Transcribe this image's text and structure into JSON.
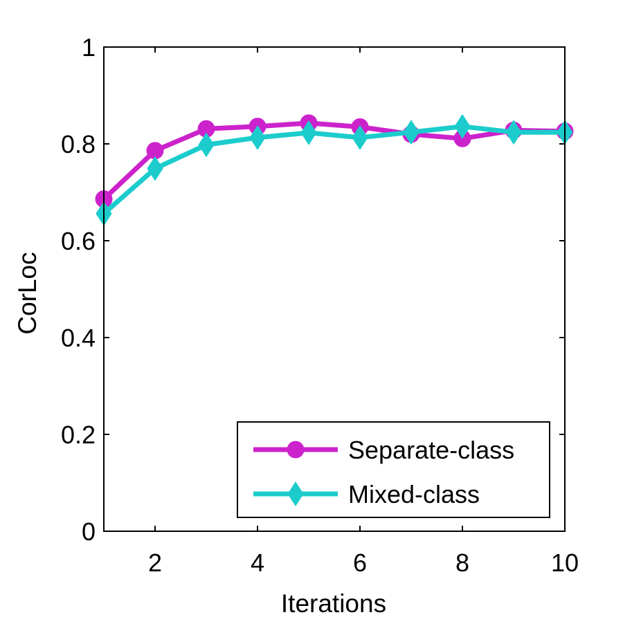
{
  "chart_data": {
    "type": "line",
    "xlabel": "Iterations",
    "ylabel": "CorLoc",
    "xlim": [
      1,
      10
    ],
    "ylim": [
      0,
      1
    ],
    "xticks": [
      2,
      4,
      6,
      8,
      10
    ],
    "yticks": [
      0,
      0.2,
      0.4,
      0.6,
      0.8,
      1
    ],
    "xtick_labels": [
      "2",
      "4",
      "6",
      "8",
      "10"
    ],
    "ytick_labels": [
      "0",
      "0.2",
      "0.4",
      "0.6",
      "0.8",
      "1"
    ],
    "x": [
      1,
      2,
      3,
      4,
      5,
      6,
      7,
      8,
      9,
      10
    ],
    "series": [
      {
        "name": "Separate-class",
        "color": "#cc22cc",
        "marker": "circle",
        "values": [
          0.686,
          0.786,
          0.831,
          0.836,
          0.843,
          0.835,
          0.82,
          0.811,
          0.828,
          0.826
        ]
      },
      {
        "name": "Mixed-class",
        "color": "#1ccccc",
        "marker": "diamond",
        "values": [
          0.656,
          0.749,
          0.798,
          0.813,
          0.823,
          0.813,
          0.824,
          0.836,
          0.824,
          0.824
        ]
      }
    ],
    "legend_position": "bottom-right",
    "grid": false
  }
}
